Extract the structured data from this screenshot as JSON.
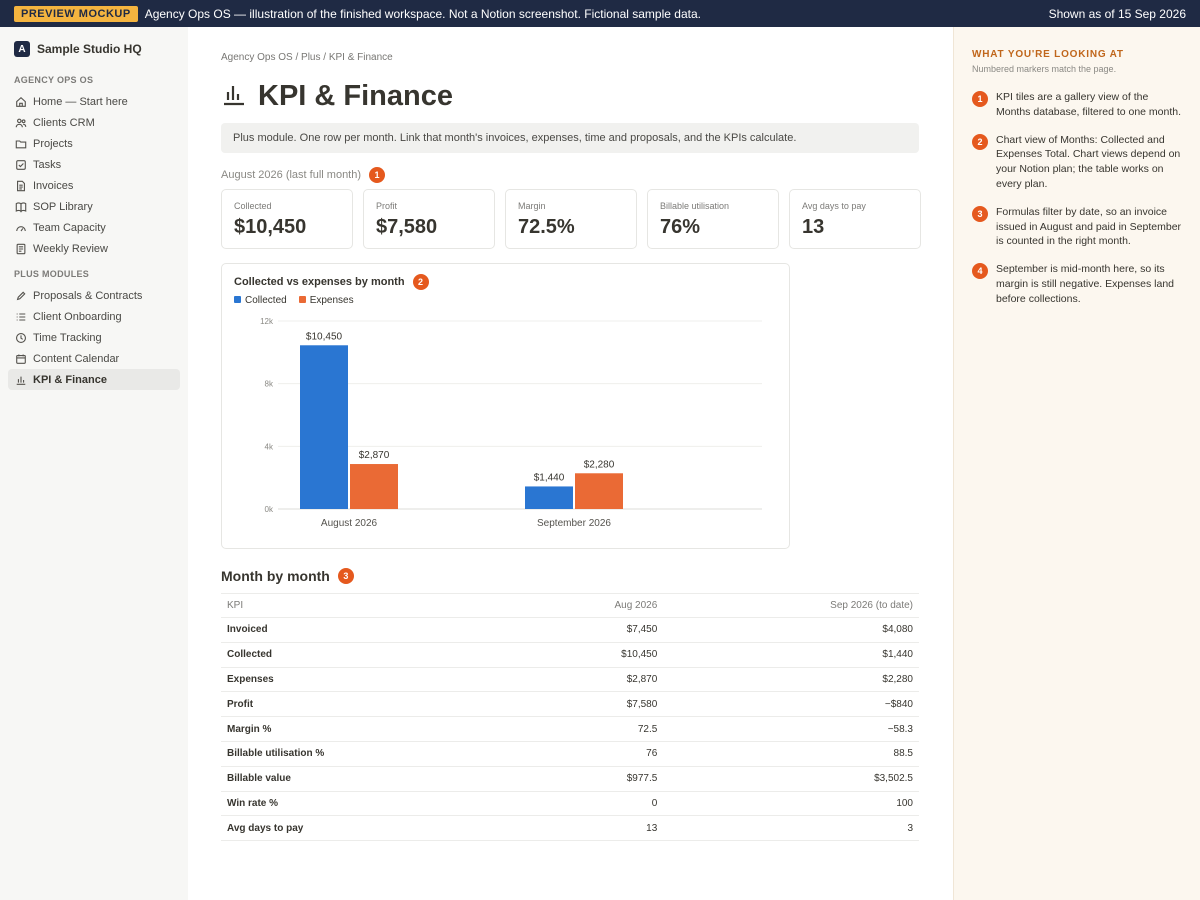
{
  "banner": {
    "badge": "PREVIEW MOCKUP",
    "message": "Agency Ops OS — illustration of the finished workspace. Not a Notion screenshot. Fictional sample data.",
    "as_of": "Shown as of 15 Sep 2026"
  },
  "sidebar": {
    "workspace_logo": "A",
    "workspace_name": "Sample Studio HQ",
    "section1_title": "AGENCY OPS OS",
    "section1_items": [
      {
        "label": "Home — Start here",
        "icon": "home-icon"
      },
      {
        "label": "Clients CRM",
        "icon": "users-icon"
      },
      {
        "label": "Projects",
        "icon": "folder-icon"
      },
      {
        "label": "Tasks",
        "icon": "checkbox-icon"
      },
      {
        "label": "Invoices",
        "icon": "document-icon"
      },
      {
        "label": "SOP Library",
        "icon": "book-icon"
      },
      {
        "label": "Team Capacity",
        "icon": "gauge-icon"
      },
      {
        "label": "Weekly Review",
        "icon": "list-doc-icon"
      }
    ],
    "section2_title": "PLUS MODULES",
    "section2_items": [
      {
        "label": "Proposals & Contracts",
        "icon": "pen-icon"
      },
      {
        "label": "Client Onboarding",
        "icon": "checklist-icon"
      },
      {
        "label": "Time Tracking",
        "icon": "clock-icon"
      },
      {
        "label": "Content Calendar",
        "icon": "calendar-icon"
      },
      {
        "label": "KPI & Finance",
        "icon": "bar-chart-icon",
        "active": true
      }
    ]
  },
  "main": {
    "breadcrumb": "Agency Ops OS / Plus / KPI & Finance",
    "title": "KPI & Finance",
    "callout": "Plus module. One row per month. Link that month's invoices, expenses, time and proposals, and the KPIs calculate.",
    "period_label": "August 2026 (last full month)",
    "period_marker": "1",
    "tiles": [
      {
        "label": "Collected",
        "value": "$10,450"
      },
      {
        "label": "Profit",
        "value": "$7,580"
      },
      {
        "label": "Margin",
        "value": "72.5%"
      },
      {
        "label": "Billable utilisation",
        "value": "76%"
      },
      {
        "label": "Avg days to pay",
        "value": "13"
      }
    ],
    "chart_title": "Collected vs expenses by month",
    "chart_marker": "2",
    "section_title": "Month by month",
    "section_marker": "3",
    "table": {
      "headers": [
        "KPI",
        "Aug 2026",
        "Sep 2026 (to date)"
      ],
      "rows": [
        [
          "Invoiced",
          "$7,450",
          "$4,080"
        ],
        [
          "Collected",
          "$10,450",
          "$1,440"
        ],
        [
          "Expenses",
          "$2,870",
          "$2,280"
        ],
        [
          "Profit",
          "$7,580",
          "−$840"
        ],
        [
          "Margin %",
          "72.5",
          "−58.3"
        ],
        [
          "Billable utilisation %",
          "76",
          "88.5"
        ],
        [
          "Billable value",
          "$977.5",
          "$3,502.5"
        ],
        [
          "Win rate %",
          "0",
          "100"
        ],
        [
          "Avg days to pay",
          "13",
          "3"
        ]
      ]
    }
  },
  "chart_data": {
    "type": "bar",
    "title": "Collected vs expenses by month",
    "categories": [
      "August 2026",
      "September 2026"
    ],
    "series": [
      {
        "name": "Collected",
        "values": [
          10450,
          1440
        ],
        "labels": [
          "$10,450",
          "$1,440"
        ],
        "color": "#2a76d2"
      },
      {
        "name": "Expenses",
        "values": [
          2870,
          2280
        ],
        "labels": [
          "$2,870",
          "$2,280"
        ],
        "color": "#ea6a35"
      }
    ],
    "y_ticks": [
      "0k",
      "4k",
      "8k",
      "12k"
    ],
    "ylim": [
      0,
      12000
    ],
    "grid": true,
    "legend": "top-left"
  },
  "panel": {
    "title": "WHAT YOU'RE LOOKING AT",
    "subtitle": "Numbered markers match the page.",
    "notes": [
      {
        "n": "1",
        "text": "KPI tiles are a gallery view of the Months database, filtered to one month."
      },
      {
        "n": "2",
        "text": "Chart view of Months: Collected and Expenses Total. Chart views depend on your Notion plan; the table works on every plan."
      },
      {
        "n": "3",
        "text": "Formulas filter by date, so an invoice issued in August and paid in September is counted in the right month."
      },
      {
        "n": "4",
        "text": "September is mid-month here, so its margin is still negative. Expenses land before collections."
      }
    ]
  },
  "colors": {
    "accent": "#e5591e",
    "collected": "#2a76d2",
    "expenses": "#ea6a35",
    "banner_bg": "#1f2a44",
    "badge_bg": "#f4b43f"
  }
}
